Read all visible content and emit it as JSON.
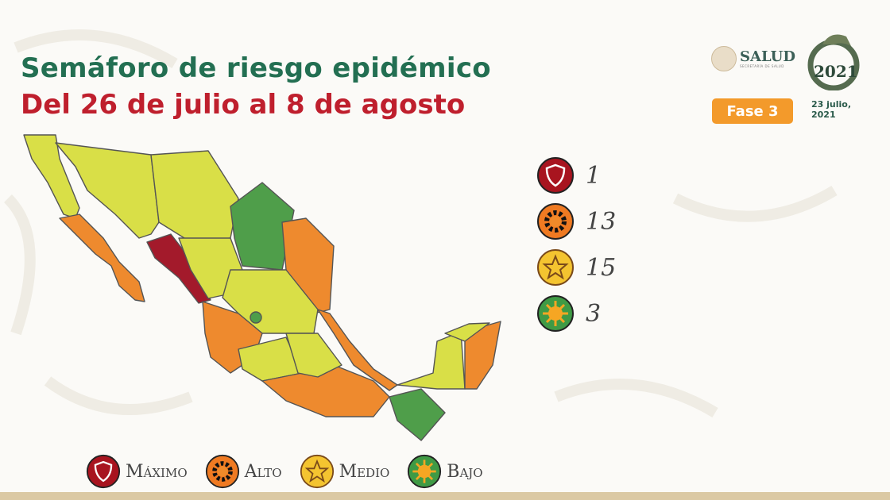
{
  "header": {
    "title": "Semáforo de riesgo epidémico",
    "subtitle": "Del 26 de julio al 8 de agosto"
  },
  "branding": {
    "salud_logo": "SALUD",
    "salud_sub": "SECRETARÍA DE SALUD",
    "year_logo": "2021"
  },
  "status": {
    "phase": "Fase 3",
    "date": "23 julio, 2021"
  },
  "counts": [
    {
      "level": "Máximo",
      "icon": "shield-icon",
      "color": "#a8141f",
      "value": "1"
    },
    {
      "level": "Alto",
      "icon": "gear-icon",
      "color": "#ef7a22",
      "value": "13"
    },
    {
      "level": "Medio",
      "icon": "star-icon",
      "color": "#f4c430",
      "value": "15"
    },
    {
      "level": "Bajo",
      "icon": "sun-icon",
      "color": "#3f9a45",
      "value": "3"
    }
  ],
  "legend": [
    {
      "label": "Máximo",
      "icon": "shield-icon",
      "color": "#a8141f"
    },
    {
      "label": "Alto",
      "icon": "gear-icon",
      "color": "#ef7a22"
    },
    {
      "label": "Medio",
      "icon": "star-icon",
      "color": "#f4c430"
    },
    {
      "label": "Bajo",
      "icon": "sun-icon",
      "color": "#3f9a45"
    }
  ],
  "map_colors": {
    "maximo": "#a31a2b",
    "alto": "#ee8a2e",
    "medio": "#d9df47",
    "bajo": "#4f9e4a"
  }
}
